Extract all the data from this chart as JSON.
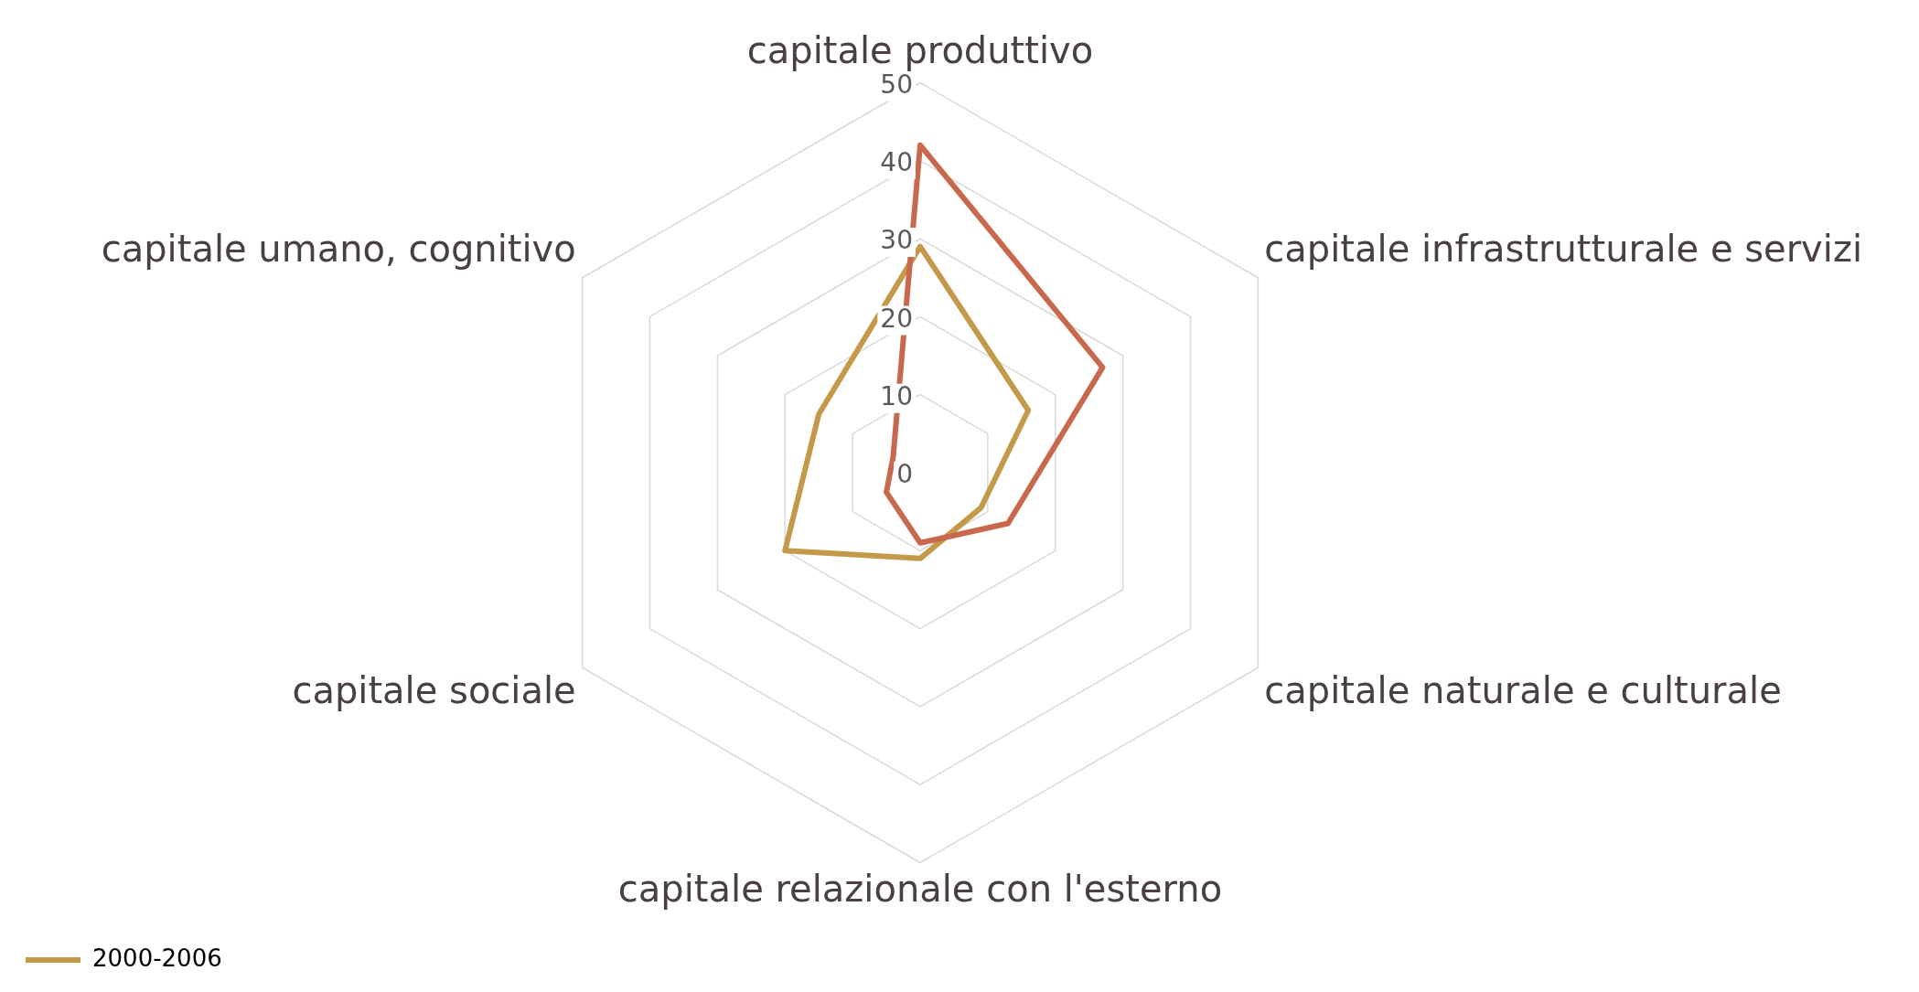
{
  "chart_data": {
    "type": "radar",
    "categories": [
      "capitale produttivo",
      "capitale infrastrutturale e servizi",
      "capitale naturale e culturale",
      "capitale relazionale con l'esterno",
      "capitale sociale",
      "capitale umano, cognitivo"
    ],
    "series": [
      {
        "color": "#c8694d",
        "values": [
          42,
          27,
          13,
          9,
          5,
          4
        ]
      },
      {
        "name": "2000-2006",
        "color": "#c49a4a",
        "values": [
          29,
          16,
          9,
          11,
          20,
          15
        ]
      }
    ],
    "ylim": [
      0,
      50
    ],
    "yticks": [
      0,
      10,
      20,
      30,
      40,
      50
    ],
    "grid": true,
    "legend": "bottom left",
    "marker": "none"
  }
}
